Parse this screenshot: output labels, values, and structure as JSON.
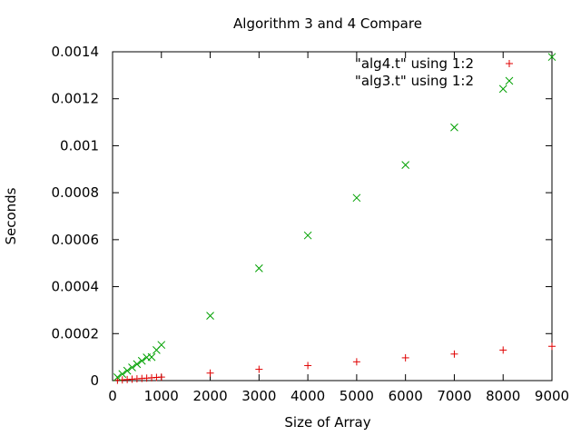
{
  "chart_data": {
    "type": "scatter",
    "title": "Algorithm 3 and 4 Compare",
    "xlabel": "Size of Array",
    "ylabel": "Seconds",
    "xlim": [
      0,
      9000
    ],
    "ylim": [
      0,
      0.0014
    ],
    "x_ticks": [
      "0",
      "1000",
      "2000",
      "3000",
      "4000",
      "5000",
      "6000",
      "7000",
      "8000",
      "9000"
    ],
    "y_ticks": [
      "0",
      "0.0002",
      "0.0004",
      "0.0006",
      "0.0008",
      "0.001",
      "0.0012",
      "0.0014"
    ],
    "grid": false,
    "legend_position": "top-right",
    "series": [
      {
        "name": "\"alg4.t\" using 1:2",
        "marker": "plus",
        "color": "#e00000",
        "x": [
          100,
          200,
          300,
          400,
          500,
          600,
          700,
          800,
          900,
          1000,
          2000,
          3000,
          4000,
          5000,
          6000,
          7000,
          8000,
          9000
        ],
        "y": [
          1.5e-06,
          3e-06,
          4.5e-06,
          6e-06,
          7.5e-06,
          9e-06,
          1.05e-05,
          1.2e-05,
          1.35e-05,
          1.5e-05,
          3.2e-05,
          4.8e-05,
          6.4e-05,
          8e-05,
          9.7e-05,
          0.000113,
          0.00013,
          0.000146
        ]
      },
      {
        "name": "\"alg3.t\" using 1:2",
        "marker": "cross",
        "color": "#00a000",
        "x": [
          100,
          200,
          300,
          400,
          500,
          600,
          700,
          800,
          900,
          1000,
          2000,
          3000,
          4000,
          5000,
          6000,
          7000,
          8000,
          9000
        ],
        "y": [
          1.4e-05,
          2.8e-05,
          4.2e-05,
          5.6e-05,
          7e-05,
          8.4e-05,
          9.85e-05,
          0.0001,
          0.00013,
          0.000152,
          0.000276,
          0.000478,
          0.000618,
          0.000778,
          0.000918,
          0.001078,
          0.001242,
          0.001378
        ]
      }
    ]
  }
}
